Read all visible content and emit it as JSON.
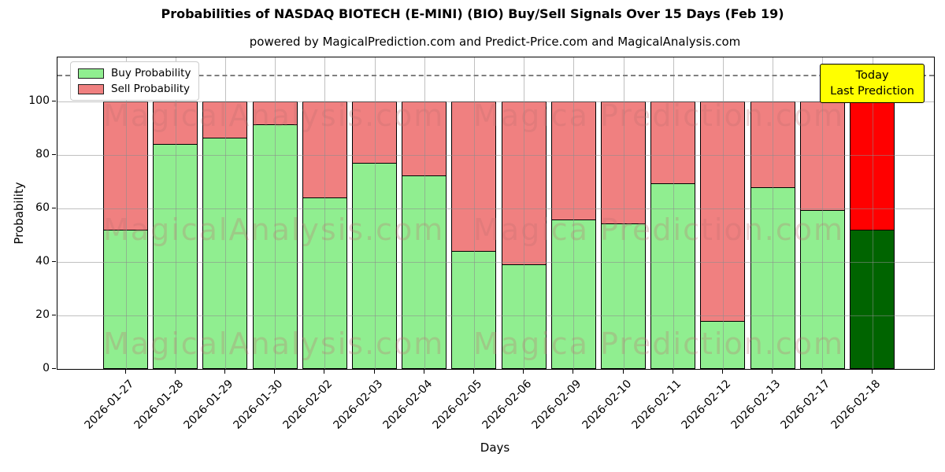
{
  "title": "Probabilities of NASDAQ BIOTECH (E-MINI) (BIO) Buy/Sell Signals Over 15 Days (Feb 19)",
  "subtitle": "powered by MagicalPrediction.com and Predict-Price.com and MagicalAnalysis.com",
  "axes": {
    "xlabel": "Days",
    "ylabel": "Probability",
    "yticks": [
      0,
      20,
      40,
      60,
      80,
      100
    ],
    "ylim": [
      0,
      116.5
    ],
    "dashed_line_y": 110,
    "grid": "on"
  },
  "legend": {
    "position": "upper-left",
    "items": [
      {
        "label": "Buy Probability",
        "color": "#90ee90"
      },
      {
        "label": "Sell Probability",
        "color": "#f08080"
      }
    ]
  },
  "annotation": {
    "line1": "Today",
    "line2": "Last Prediction",
    "bg_color": "#ffff00"
  },
  "watermarks": {
    "left_text": "MagicalAnalysis.com",
    "right_text": "Magica Prediction.com"
  },
  "colors": {
    "buy": "#90ee90",
    "sell": "#f08080",
    "today_buy": "#006400",
    "today_sell": "#ff0000",
    "bar_edge": "#000000"
  },
  "chart_data": {
    "type": "bar",
    "stacked": true,
    "categories": [
      "2026-01-27",
      "2026-01-28",
      "2026-01-29",
      "2026-01-30",
      "2026-02-02",
      "2026-02-03",
      "2026-02-04",
      "2026-02-05",
      "2026-02-06",
      "2026-02-09",
      "2026-02-10",
      "2026-02-11",
      "2026-02-12",
      "2026-02-13",
      "2026-02-17",
      "2026-02-18"
    ],
    "series": [
      {
        "name": "Buy Probability",
        "values": [
          52,
          84,
          86.5,
          91.5,
          64,
          77,
          72.5,
          44,
          39,
          56,
          54.5,
          69.5,
          18,
          68,
          59.5,
          52
        ]
      },
      {
        "name": "Sell Probability",
        "values": [
          48,
          16,
          13.5,
          8.5,
          36,
          23,
          27.5,
          56,
          61,
          44,
          45.5,
          30.5,
          82,
          32,
          40.5,
          48
        ]
      }
    ],
    "today_bar_index": 15,
    "title": "Probabilities of NASDAQ BIOTECH (E-MINI) (BIO) Buy/Sell Signals Over 15 Days (Feb 19)",
    "xlabel": "Days",
    "ylabel": "Probability"
  }
}
